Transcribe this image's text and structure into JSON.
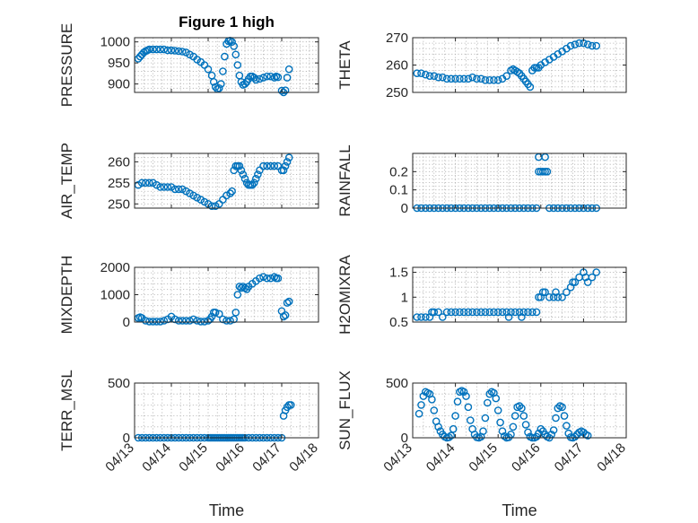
{
  "figure": {
    "title": "Figure 1 high",
    "xlabel": "Time",
    "x_ticks": [
      "04/13",
      "04/14",
      "04/15",
      "04/16",
      "04/17",
      "04/18"
    ],
    "marker_color": "#0072BD"
  },
  "chart_data": [
    {
      "type": "scatter",
      "id": "pressure",
      "title": "Figure 1 high",
      "ylabel": "PRESSURE",
      "xlim": [
        13,
        18
      ],
      "ylim": [
        880,
        1010
      ],
      "yticks": [
        900,
        950,
        1000
      ],
      "grid": true,
      "x": [
        13.1,
        13.15,
        13.2,
        13.25,
        13.3,
        13.35,
        13.4,
        13.5,
        13.6,
        13.7,
        13.8,
        13.9,
        14.0,
        14.1,
        14.2,
        14.3,
        14.4,
        14.5,
        14.6,
        14.7,
        14.8,
        14.9,
        15.0,
        15.1,
        15.15,
        15.2,
        15.25,
        15.3,
        15.35,
        15.4,
        15.45,
        15.5,
        15.55,
        15.6,
        15.65,
        15.7,
        15.75,
        15.8,
        15.85,
        15.9,
        15.95,
        16.0,
        16.05,
        16.1,
        16.15,
        16.2,
        16.25,
        16.3,
        16.4,
        16.5,
        16.6,
        16.7,
        16.8,
        16.85,
        16.9,
        17.0,
        17.05,
        17.1,
        17.15,
        17.2
      ],
      "y": [
        960,
        965,
        970,
        975,
        978,
        980,
        982,
        982,
        982,
        982,
        982,
        980,
        980,
        979,
        978,
        977,
        975,
        970,
        965,
        958,
        952,
        945,
        935,
        920,
        905,
        893,
        888,
        890,
        900,
        930,
        965,
        995,
        1002,
        1003,
        1000,
        990,
        970,
        945,
        920,
        905,
        898,
        900,
        905,
        912,
        918,
        918,
        915,
        910,
        912,
        915,
        918,
        918,
        915,
        918,
        916,
        884,
        880,
        885,
        915,
        935
      ]
    },
    {
      "type": "scatter",
      "id": "theta",
      "ylabel": "THETA",
      "xlim": [
        13,
        18
      ],
      "ylim": [
        250,
        270
      ],
      "yticks": [
        250,
        260,
        270
      ],
      "grid": true,
      "x": [
        13.1,
        13.2,
        13.3,
        13.4,
        13.5,
        13.6,
        13.7,
        13.8,
        13.9,
        14.0,
        14.1,
        14.2,
        14.3,
        14.4,
        14.5,
        14.6,
        14.7,
        14.8,
        14.9,
        15.0,
        15.1,
        15.2,
        15.3,
        15.35,
        15.4,
        15.45,
        15.5,
        15.55,
        15.6,
        15.65,
        15.7,
        15.75,
        15.8,
        15.85,
        15.9,
        15.95,
        16.0,
        16.1,
        16.2,
        16.3,
        16.4,
        16.5,
        16.6,
        16.7,
        16.8,
        16.9,
        17.0,
        17.1,
        17.2,
        17.3
      ],
      "y": [
        257,
        257,
        256.5,
        256,
        256,
        255.5,
        255.5,
        255,
        255,
        255,
        255,
        255,
        255,
        255.5,
        255,
        255,
        254.5,
        254.5,
        254.5,
        254.5,
        255,
        256,
        258,
        258.5,
        258,
        257.5,
        257,
        256,
        255,
        254,
        253,
        252,
        258,
        259,
        259,
        259,
        260,
        261,
        262,
        263,
        264,
        265,
        266,
        267,
        267.5,
        268,
        268,
        267.5,
        267,
        267
      ]
    },
    {
      "type": "scatter",
      "id": "air_temp",
      "ylabel": "AIR_TEMP",
      "xlim": [
        13,
        18
      ],
      "ylim": [
        249,
        262
      ],
      "yticks": [
        250,
        255,
        260
      ],
      "grid": true,
      "x": [
        13.1,
        13.2,
        13.3,
        13.4,
        13.5,
        13.6,
        13.7,
        13.8,
        13.9,
        14.0,
        14.1,
        14.2,
        14.3,
        14.4,
        14.5,
        14.6,
        14.7,
        14.8,
        14.9,
        15.0,
        15.1,
        15.2,
        15.3,
        15.4,
        15.5,
        15.6,
        15.65,
        15.7,
        15.75,
        15.8,
        15.85,
        15.9,
        15.95,
        16.0,
        16.05,
        16.1,
        16.15,
        16.2,
        16.25,
        16.3,
        16.35,
        16.4,
        16.5,
        16.6,
        16.7,
        16.8,
        16.9,
        17.0,
        17.05,
        17.1,
        17.15,
        17.2
      ],
      "y": [
        254.5,
        255,
        255,
        255,
        255,
        254.5,
        254,
        254,
        254,
        254,
        253.5,
        253.5,
        253.5,
        253,
        252.5,
        252,
        251.5,
        251,
        250.5,
        250,
        249.5,
        249.5,
        250,
        251,
        252,
        252.5,
        253,
        258,
        259,
        259,
        259,
        258,
        257,
        256,
        255,
        254.5,
        254.5,
        254.5,
        255,
        256,
        257,
        258,
        259,
        259,
        259,
        259,
        259,
        258,
        258,
        259,
        260,
        261
      ]
    },
    {
      "type": "scatter",
      "id": "rainfall",
      "ylabel": "RAINFALL",
      "xlim": [
        13,
        18
      ],
      "ylim": [
        0,
        0.3
      ],
      "yticks": [
        0,
        0.1,
        0.2
      ],
      "grid": true,
      "x": [
        13.1,
        13.2,
        13.3,
        13.4,
        13.5,
        13.6,
        13.7,
        13.8,
        13.9,
        14.0,
        14.1,
        14.2,
        14.3,
        14.4,
        14.5,
        14.6,
        14.7,
        14.8,
        14.9,
        15.0,
        15.1,
        15.2,
        15.3,
        15.4,
        15.5,
        15.6,
        15.7,
        15.8,
        15.9,
        15.95,
        15.95,
        16.0,
        16.05,
        16.1,
        16.1,
        16.15,
        16.2,
        16.3,
        16.4,
        16.5,
        16.6,
        16.7,
        16.8,
        16.9,
        17.0,
        17.1,
        17.2,
        17.3
      ],
      "y": [
        0,
        0,
        0,
        0,
        0,
        0,
        0,
        0,
        0,
        0,
        0,
        0,
        0,
        0,
        0,
        0,
        0,
        0,
        0,
        0,
        0,
        0,
        0,
        0,
        0,
        0,
        0,
        0,
        0,
        0.28,
        0.2,
        0.2,
        0.2,
        0.2,
        0.28,
        0.2,
        0,
        0,
        0,
        0,
        0,
        0,
        0,
        0,
        0,
        0,
        0,
        0
      ]
    },
    {
      "type": "scatter",
      "id": "mixdepth",
      "ylabel": "MIXDEPTH",
      "xlim": [
        13,
        18
      ],
      "ylim": [
        0,
        2000
      ],
      "yticks": [
        0,
        1000,
        2000
      ],
      "grid": true,
      "x": [
        13.1,
        13.15,
        13.2,
        13.3,
        13.4,
        13.5,
        13.6,
        13.7,
        13.8,
        13.9,
        14.0,
        14.1,
        14.2,
        14.3,
        14.4,
        14.5,
        14.6,
        14.7,
        14.8,
        14.9,
        15.0,
        15.05,
        15.1,
        15.15,
        15.2,
        15.3,
        15.4,
        15.5,
        15.6,
        15.7,
        15.75,
        15.8,
        15.85,
        15.9,
        15.95,
        16.0,
        16.05,
        16.1,
        16.2,
        16.3,
        16.4,
        16.5,
        16.6,
        16.7,
        16.8,
        16.85,
        16.9,
        17.0,
        17.05,
        17.1,
        17.15,
        17.2
      ],
      "y": [
        150,
        180,
        150,
        50,
        20,
        20,
        20,
        20,
        50,
        100,
        200,
        100,
        50,
        50,
        50,
        50,
        100,
        50,
        20,
        20,
        50,
        100,
        200,
        350,
        350,
        300,
        100,
        50,
        50,
        100,
        350,
        1000,
        1300,
        1250,
        1300,
        1250,
        1200,
        1300,
        1400,
        1500,
        1600,
        1650,
        1600,
        1600,
        1650,
        1600,
        1600,
        400,
        200,
        250,
        700,
        750
      ]
    },
    {
      "type": "scatter",
      "id": "h2omixra",
      "ylabel": "H2OMIXRA",
      "xlim": [
        13,
        18
      ],
      "ylim": [
        0.5,
        1.6
      ],
      "yticks": [
        0.5,
        1,
        1.5
      ],
      "grid": true,
      "x": [
        13.1,
        13.2,
        13.3,
        13.4,
        13.45,
        13.5,
        13.6,
        13.7,
        13.8,
        13.9,
        14.0,
        14.1,
        14.2,
        14.3,
        14.4,
        14.5,
        14.6,
        14.7,
        14.8,
        14.9,
        15.0,
        15.1,
        15.2,
        15.25,
        15.3,
        15.4,
        15.5,
        15.55,
        15.6,
        15.7,
        15.8,
        15.9,
        15.95,
        16.0,
        16.05,
        16.1,
        16.2,
        16.3,
        16.35,
        16.4,
        16.5,
        16.6,
        16.7,
        16.75,
        16.8,
        16.9,
        17.0,
        17.05,
        17.1,
        17.2,
        17.3
      ],
      "y": [
        0.6,
        0.6,
        0.6,
        0.6,
        0.7,
        0.7,
        0.7,
        0.6,
        0.7,
        0.7,
        0.7,
        0.7,
        0.7,
        0.7,
        0.7,
        0.7,
        0.7,
        0.7,
        0.7,
        0.7,
        0.7,
        0.7,
        0.7,
        0.6,
        0.7,
        0.7,
        0.7,
        0.6,
        0.7,
        0.7,
        0.7,
        0.7,
        1.0,
        1.0,
        1.1,
        1.1,
        1.0,
        1.0,
        1.1,
        1.0,
        1.0,
        1.1,
        1.2,
        1.3,
        1.3,
        1.4,
        1.5,
        1.4,
        1.3,
        1.4,
        1.5
      ]
    },
    {
      "type": "scatter",
      "id": "terr_msl",
      "ylabel": "TERR_MSL",
      "xlim": [
        13,
        18
      ],
      "ylim": [
        0,
        500
      ],
      "yticks": [
        0,
        500
      ],
      "grid": true,
      "x": [
        13.1,
        13.2,
        13.3,
        13.4,
        13.5,
        13.6,
        13.7,
        13.8,
        13.9,
        14.0,
        14.1,
        14.2,
        14.3,
        14.4,
        14.5,
        14.6,
        14.7,
        14.8,
        14.9,
        15.0,
        15.05,
        15.1,
        15.15,
        15.2,
        15.25,
        15.3,
        15.35,
        15.4,
        15.45,
        15.5,
        15.55,
        15.6,
        15.65,
        15.7,
        15.75,
        15.8,
        15.85,
        15.9,
        15.95,
        16.0,
        16.1,
        16.2,
        16.3,
        16.4,
        16.5,
        16.6,
        16.7,
        16.8,
        16.9,
        17.0,
        17.05,
        17.1,
        17.15,
        17.2,
        17.25
      ],
      "y": [
        0,
        0,
        0,
        0,
        0,
        0,
        0,
        0,
        0,
        0,
        0,
        0,
        0,
        0,
        0,
        0,
        0,
        0,
        0,
        0,
        0,
        0,
        0,
        0,
        0,
        0,
        0,
        0,
        0,
        0,
        0,
        0,
        0,
        0,
        0,
        0,
        0,
        0,
        0,
        0,
        0,
        0,
        0,
        0,
        0,
        0,
        0,
        0,
        0,
        0,
        200,
        250,
        280,
        300,
        300
      ]
    },
    {
      "type": "scatter",
      "id": "sun_flux",
      "ylabel": "SUN_FLUX",
      "xlim": [
        13,
        18
      ],
      "ylim": [
        0,
        500
      ],
      "yticks": [
        0,
        500
      ],
      "grid": true,
      "x": [
        13.15,
        13.2,
        13.25,
        13.3,
        13.35,
        13.4,
        13.45,
        13.5,
        13.55,
        13.6,
        13.65,
        13.7,
        13.75,
        13.8,
        13.85,
        13.9,
        13.95,
        14.0,
        14.05,
        14.1,
        14.15,
        14.2,
        14.25,
        14.3,
        14.35,
        14.4,
        14.45,
        14.5,
        14.55,
        14.6,
        14.65,
        14.7,
        14.75,
        14.8,
        14.85,
        14.9,
        14.95,
        15.0,
        15.05,
        15.1,
        15.15,
        15.2,
        15.25,
        15.3,
        15.35,
        15.4,
        15.45,
        15.5,
        15.55,
        15.6,
        15.65,
        15.7,
        15.75,
        15.8,
        15.85,
        15.9,
        15.95,
        16.0,
        16.05,
        16.1,
        16.15,
        16.2,
        16.25,
        16.3,
        16.35,
        16.4,
        16.45,
        16.5,
        16.55,
        16.6,
        16.65,
        16.7,
        16.75,
        16.8,
        16.85,
        16.9,
        16.95,
        17.0,
        17.05,
        17.1
      ],
      "y": [
        220,
        300,
        380,
        420,
        410,
        400,
        350,
        250,
        150,
        100,
        60,
        30,
        10,
        0,
        5,
        20,
        80,
        200,
        330,
        420,
        430,
        420,
        380,
        280,
        160,
        80,
        30,
        5,
        0,
        10,
        60,
        180,
        320,
        400,
        420,
        410,
        360,
        250,
        140,
        60,
        15,
        0,
        5,
        30,
        100,
        200,
        280,
        290,
        270,
        200,
        120,
        50,
        10,
        0,
        0,
        10,
        40,
        80,
        60,
        30,
        10,
        0,
        30,
        70,
        180,
        270,
        290,
        280,
        200,
        110,
        40,
        5,
        0,
        10,
        30,
        50,
        60,
        50,
        30,
        20
      ]
    }
  ]
}
